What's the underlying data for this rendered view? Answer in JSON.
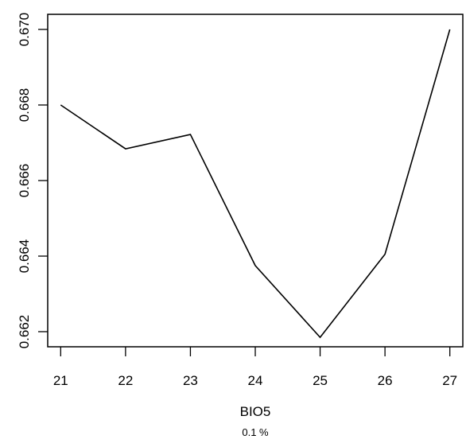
{
  "chart_data": {
    "type": "line",
    "title": "",
    "xlabel": "BIO5",
    "ylabel": "",
    "caption": "0.1 %",
    "x": [
      21,
      22,
      23,
      24,
      25,
      26,
      27
    ],
    "y": [
      0.668,
      0.66684,
      0.66722,
      0.66375,
      0.66185,
      0.66405,
      0.67
    ],
    "series": [
      {
        "x": [
          21,
          22,
          23,
          24,
          25,
          26,
          27
        ],
        "values": [
          0.668,
          0.66684,
          0.66722,
          0.66375,
          0.66185,
          0.66405,
          0.67
        ]
      }
    ],
    "xticks": [
      21,
      22,
      23,
      24,
      25,
      26,
      27
    ],
    "xtick_labels": [
      "21",
      "22",
      "23",
      "24",
      "25",
      "26",
      "27"
    ],
    "yticks": [
      0.662,
      0.664,
      0.666,
      0.668,
      0.67
    ],
    "ytick_labels": [
      "0.662",
      "0.664",
      "0.666",
      "0.668",
      "0.670"
    ],
    "xlim": [
      20.8,
      27.2
    ],
    "ylim": [
      0.6616,
      0.6704
    ],
    "grid": false,
    "legend": "none",
    "line_color": "#000000"
  }
}
